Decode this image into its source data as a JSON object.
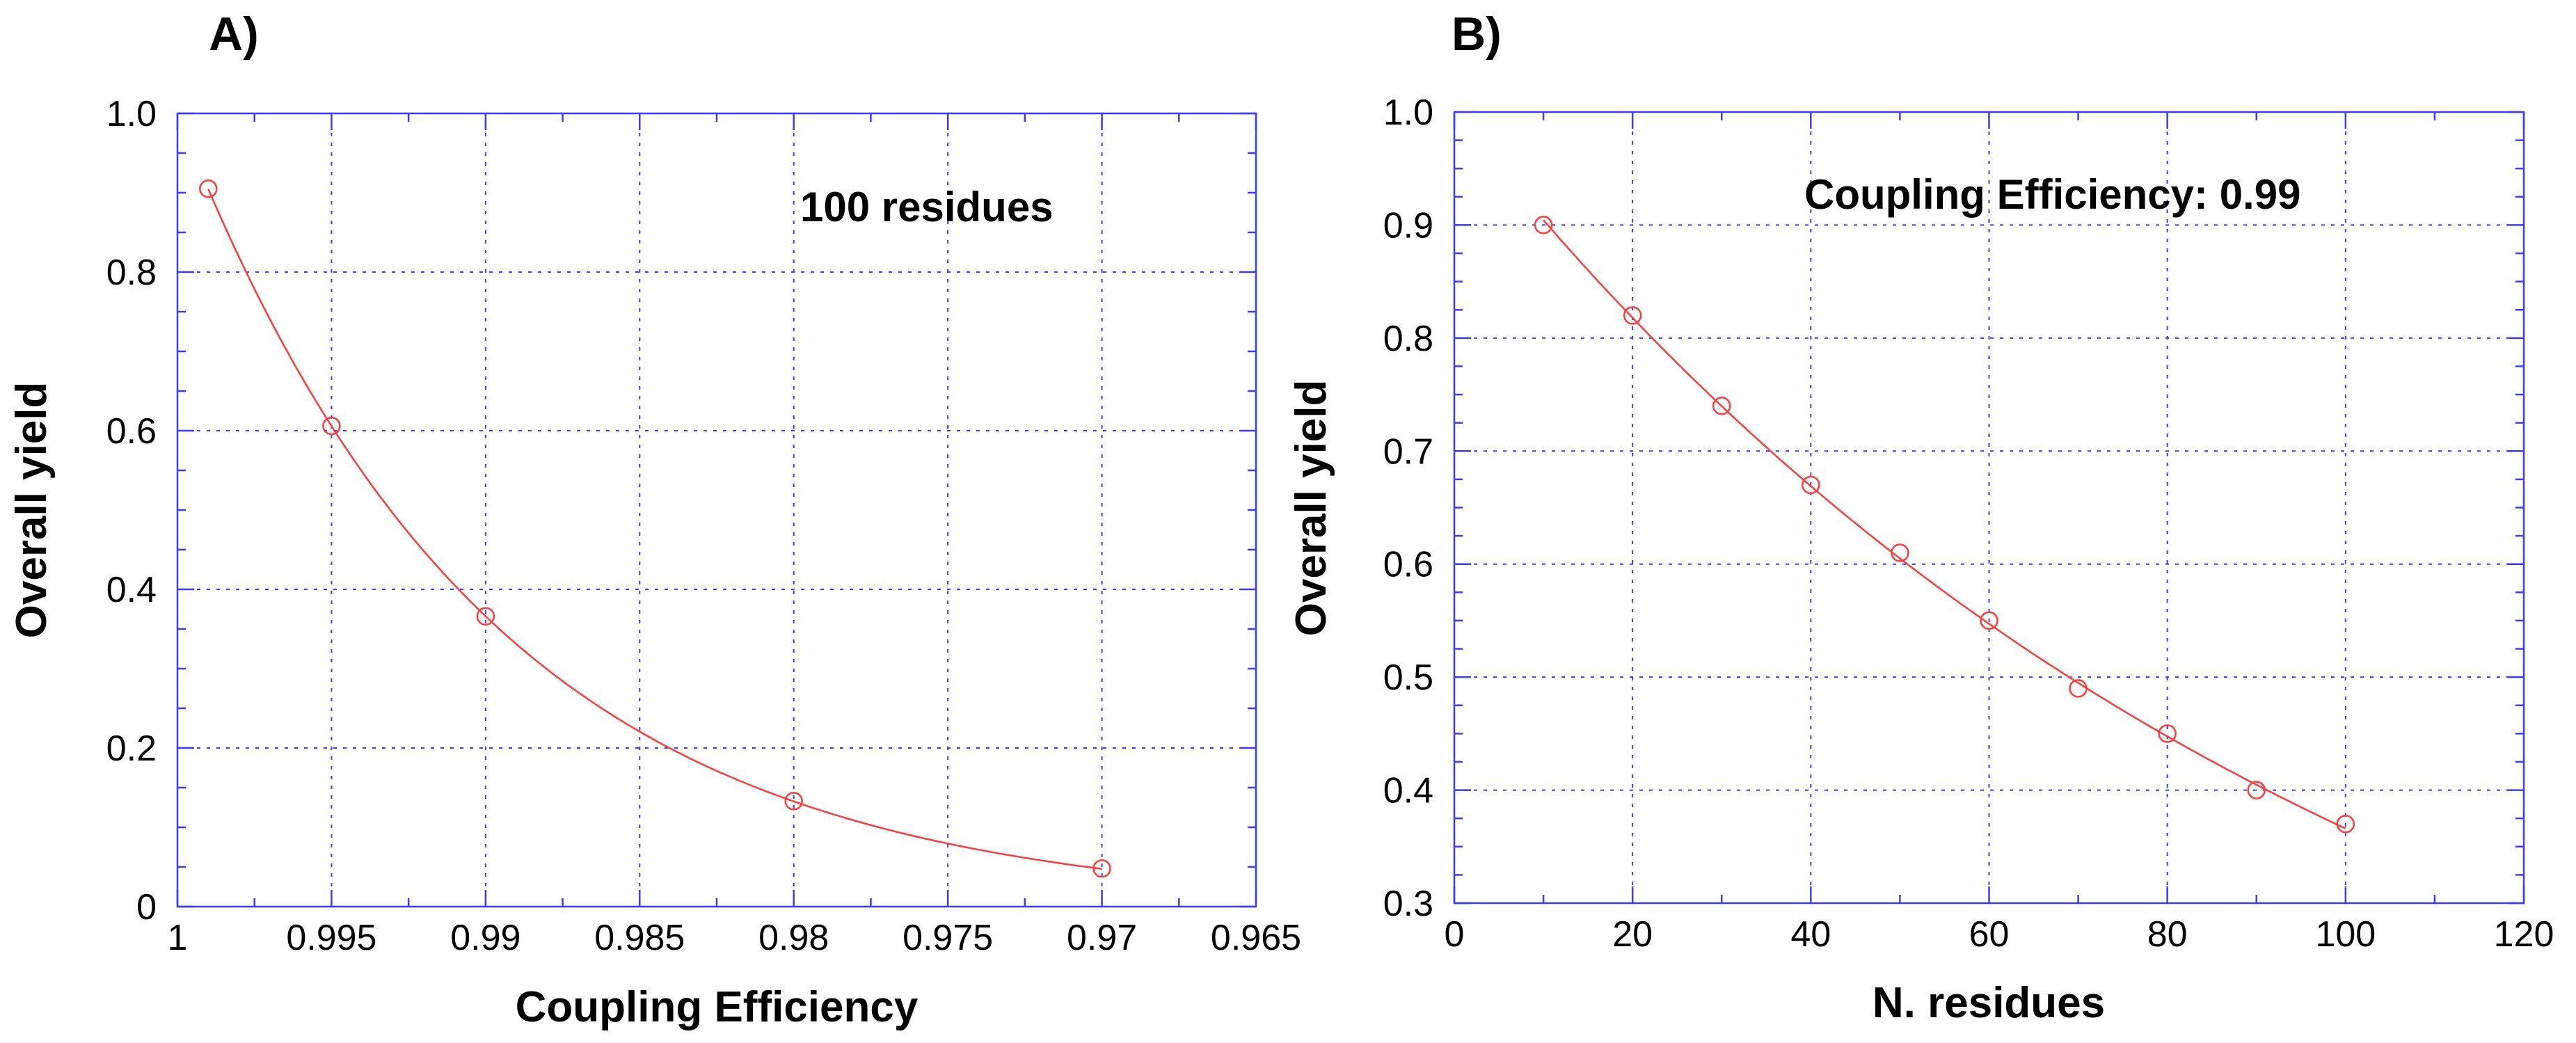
{
  "chart_data": [
    {
      "type": "scatter",
      "panel_label": "A)",
      "title": "",
      "xlabel": "Coupling Efficiency",
      "ylabel": "Overall yield",
      "annotation": "100 residues",
      "xlim": [
        1.0,
        0.965
      ],
      "ylim": [
        0,
        1.0
      ],
      "x_reversed": true,
      "xticks": [
        1.0,
        0.995,
        0.99,
        0.985,
        0.98,
        0.975,
        0.97,
        0.965
      ],
      "xtick_labels": [
        "1",
        "0.995",
        "0.99",
        "0.985",
        "0.98",
        "0.975",
        "0.97",
        "0.965"
      ],
      "yticks": [
        0,
        0.2,
        0.4,
        0.6,
        0.8,
        1.0
      ],
      "ytick_labels": [
        "0",
        "0.2",
        "0.4",
        "0.6",
        "0.8",
        "1.0"
      ],
      "grid": true,
      "series": [
        {
          "name": "Overall yield",
          "x": [
            0.999,
            0.995,
            0.99,
            0.98,
            0.97
          ],
          "y": [
            0.905,
            0.606,
            0.366,
            0.133,
            0.048
          ],
          "fit": "power",
          "exponent": 100
        }
      ],
      "colors": {
        "frame": "#3b3bff",
        "series": "#ff3b3b"
      }
    },
    {
      "type": "scatter",
      "panel_label": "B)",
      "title": "",
      "xlabel": "N. residues",
      "ylabel": "Overall yield",
      "annotation": "Coupling Efficiency: 0.99",
      "xlim": [
        0,
        120
      ],
      "ylim": [
        0.3,
        1.0
      ],
      "x_reversed": false,
      "xticks": [
        0,
        20,
        40,
        60,
        80,
        100,
        120
      ],
      "xtick_labels": [
        "0",
        "20",
        "40",
        "60",
        "80",
        "100",
        "120"
      ],
      "yticks": [
        0.3,
        0.4,
        0.5,
        0.6,
        0.7,
        0.8,
        0.9,
        1.0
      ],
      "ytick_labels": [
        "0.3",
        "0.4",
        "0.5",
        "0.6",
        "0.7",
        "0.8",
        "0.9",
        "1.0"
      ],
      "grid": true,
      "series": [
        {
          "name": "Overall yield",
          "x": [
            10,
            20,
            30,
            40,
            50,
            60,
            70,
            80,
            90,
            100
          ],
          "y": [
            0.9,
            0.82,
            0.74,
            0.67,
            0.61,
            0.55,
            0.49,
            0.45,
            0.4,
            0.37
          ],
          "fit": "exponential",
          "base": 0.99
        }
      ],
      "colors": {
        "frame": "#3b3bff",
        "series": "#ff3b3b"
      }
    }
  ]
}
